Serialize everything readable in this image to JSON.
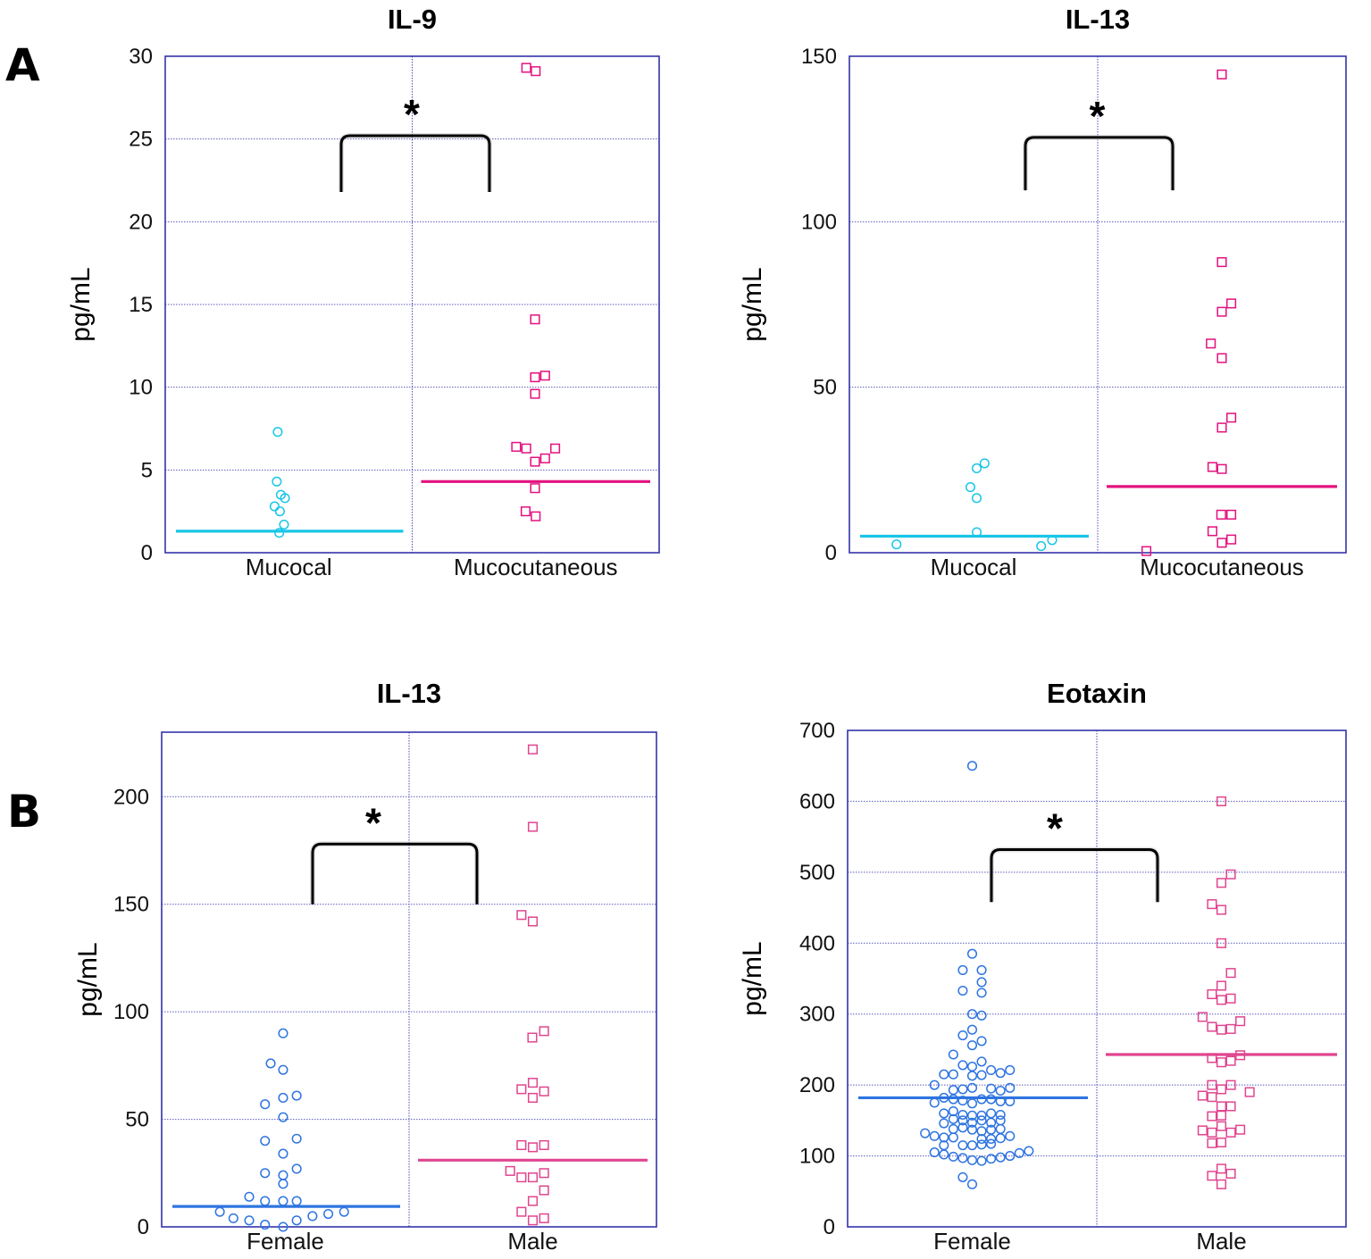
{
  "panel_labels": [
    "A",
    "B"
  ],
  "colors": {
    "frame": "#3333aa",
    "grid": "#4a4ab8",
    "cyan": "#19c6e6",
    "blue": "#2e74e0",
    "magenta_dark": "#e3117e",
    "magenta_light": "#e0458f",
    "bracket": "#000000"
  },
  "chart_data": [
    {
      "type": "scatter",
      "title": "IL-9",
      "ylabel": "pg/mL",
      "categories": [
        "Mucocal",
        "Mucocutaneous"
      ],
      "ylim": [
        0,
        30
      ],
      "yticks": [
        0,
        5,
        10,
        15,
        20,
        25,
        30
      ],
      "grid": true,
      "series": [
        {
          "name": "Mucocal",
          "marker": "circle",
          "color": "#19c6e6",
          "points": [
            [
              -0.35,
              7.3
            ],
            [
              -0.38,
              4.3
            ],
            [
              -0.25,
              3.5
            ],
            [
              -0.12,
              3.3
            ],
            [
              -0.45,
              2.8
            ],
            [
              -0.28,
              2.5
            ],
            [
              -0.15,
              1.7
            ],
            [
              -0.3,
              1.2
            ]
          ],
          "median": 1.3
        },
        {
          "name": "Mucocutaneous",
          "marker": "square",
          "color": "#e3117e",
          "points": [
            [
              -0.3,
              29.3
            ],
            [
              -0.0,
              29.1
            ],
            [
              -0.02,
              14.1
            ],
            [
              -0.02,
              10.6
            ],
            [
              0.3,
              10.7
            ],
            [
              -0.02,
              9.6
            ],
            [
              -0.62,
              6.4
            ],
            [
              -0.3,
              6.3
            ],
            [
              0.62,
              6.3
            ],
            [
              -0.02,
              5.5
            ],
            [
              0.3,
              5.7
            ],
            [
              -0.02,
              3.9
            ],
            [
              -0.32,
              2.5
            ],
            [
              0.0,
              2.2
            ]
          ],
          "median": 4.3
        }
      ],
      "significance": {
        "label": "*",
        "bracket_top": 25.2,
        "bracket_bottom": 21.8
      }
    },
    {
      "type": "scatter",
      "title": "IL-13",
      "ylabel": "pg/mL",
      "categories": [
        "Mucocal",
        "Mucocutaneous"
      ],
      "ylim": [
        0,
        150
      ],
      "yticks": [
        0,
        50,
        100,
        150
      ],
      "grid": true,
      "series": [
        {
          "name": "Mucocal",
          "marker": "circle",
          "color": "#19c6e6",
          "points": [
            [
              0.1,
              25.5
            ],
            [
              0.35,
              27
            ],
            [
              -0.1,
              19.8
            ],
            [
              0.1,
              16.5
            ],
            [
              0.1,
              6.2
            ],
            [
              -2.45,
              2.5
            ],
            [
              2.15,
              2.0
            ],
            [
              2.5,
              3.8
            ]
          ],
          "median": 5.0
        },
        {
          "name": "Mucocutaneous",
          "marker": "square",
          "color": "#e3117e",
          "points": [
            [
              0.0,
              144.5
            ],
            [
              0.0,
              87.8
            ],
            [
              0.0,
              72.8
            ],
            [
              0.3,
              75.3
            ],
            [
              -0.35,
              63.2
            ],
            [
              0.0,
              58.8
            ],
            [
              0.3,
              40.8
            ],
            [
              0.0,
              37.8
            ],
            [
              -0.3,
              25.9
            ],
            [
              0.0,
              25.3
            ],
            [
              -0.02,
              11.5
            ],
            [
              0.3,
              11.5
            ],
            [
              -0.3,
              6.5
            ],
            [
              0.0,
              3.0
            ],
            [
              0.3,
              4.0
            ],
            [
              -2.4,
              0.5
            ]
          ],
          "median": 20.0
        }
      ],
      "significance": {
        "label": "*",
        "bracket_top": 125.5,
        "bracket_bottom": 109.5
      }
    },
    {
      "type": "scatter",
      "title": "IL-13",
      "ylabel": "pg/mL",
      "categories": [
        "Female",
        "Male"
      ],
      "ylim": [
        0,
        230
      ],
      "yticks": [
        0,
        50,
        100,
        150,
        200
      ],
      "grid": true,
      "series": [
        {
          "name": "Female",
          "marker": "circle",
          "color": "#2e74e0",
          "points": [
            [
              -0.1,
              90
            ],
            [
              -0.65,
              76
            ],
            [
              -0.1,
              73
            ],
            [
              -0.9,
              57
            ],
            [
              -0.1,
              60
            ],
            [
              0.5,
              61
            ],
            [
              -0.1,
              51
            ],
            [
              -0.9,
              40
            ],
            [
              0.5,
              41
            ],
            [
              -0.1,
              34
            ],
            [
              -0.9,
              25
            ],
            [
              -0.1,
              24
            ],
            [
              0.5,
              27
            ],
            [
              -0.1,
              20
            ],
            [
              -1.6,
              14
            ],
            [
              -0.9,
              12
            ],
            [
              -0.1,
              12
            ],
            [
              0.5,
              12
            ],
            [
              -2.9,
              7
            ],
            [
              -2.3,
              4
            ],
            [
              -1.6,
              3
            ],
            [
              -0.9,
              1
            ],
            [
              -0.1,
              0
            ],
            [
              0.5,
              3
            ],
            [
              1.2,
              5
            ],
            [
              1.9,
              6
            ],
            [
              2.6,
              7
            ]
          ],
          "median": 9.5
        },
        {
          "name": "Male",
          "marker": "square",
          "color": "#e0458f",
          "points": [
            [
              0.0,
              222
            ],
            [
              0.0,
              186
            ],
            [
              -0.5,
              145
            ],
            [
              0.0,
              142
            ],
            [
              -0.02,
              88
            ],
            [
              0.5,
              91
            ],
            [
              -0.5,
              64
            ],
            [
              0.0,
              67
            ],
            [
              0.5,
              63
            ],
            [
              0.0,
              60
            ],
            [
              -0.5,
              38
            ],
            [
              0.0,
              37
            ],
            [
              0.5,
              38
            ],
            [
              -1.0,
              26
            ],
            [
              -0.5,
              23
            ],
            [
              0.0,
              23
            ],
            [
              0.5,
              25
            ],
            [
              0.0,
              12
            ],
            [
              0.5,
              17
            ],
            [
              -0.5,
              7
            ],
            [
              0.0,
              3
            ],
            [
              0.5,
              4
            ]
          ],
          "median": 31
        }
      ],
      "significance": {
        "label": "*",
        "bracket_top": 178,
        "bracket_bottom": 150
      }
    },
    {
      "type": "scatter",
      "title": "Eotaxin",
      "ylabel": "pg/mL",
      "categories": [
        "Female",
        "Male"
      ],
      "ylim": [
        0,
        700
      ],
      "yticks": [
        0,
        100,
        200,
        300,
        400,
        500,
        600,
        700
      ],
      "grid": true,
      "series": [
        {
          "name": "Female",
          "marker": "circle",
          "color": "#2e74e0",
          "points": [
            [
              0.0,
              650
            ],
            [
              0.0,
              385
            ],
            [
              -0.3,
              362
            ],
            [
              0.3,
              362
            ],
            [
              0.3,
              345
            ],
            [
              -0.3,
              333
            ],
            [
              0.3,
              330
            ],
            [
              0.0,
              300
            ],
            [
              0.3,
              298
            ],
            [
              0.0,
              278
            ],
            [
              -0.3,
              270
            ],
            [
              0.3,
              262
            ],
            [
              0.0,
              256
            ],
            [
              -0.6,
              243
            ],
            [
              0.3,
              233
            ],
            [
              -0.3,
              228
            ],
            [
              0.0,
              226
            ],
            [
              0.6,
              221
            ],
            [
              -0.9,
              215
            ],
            [
              -0.6,
              215
            ],
            [
              0.0,
              213
            ],
            [
              0.3,
              214
            ],
            [
              0.9,
              217
            ],
            [
              1.2,
              221
            ],
            [
              -1.2,
              200
            ],
            [
              -0.6,
              193
            ],
            [
              -0.3,
              194
            ],
            [
              0.0,
              196
            ],
            [
              0.6,
              195
            ],
            [
              0.9,
              192
            ],
            [
              1.2,
              196
            ],
            [
              -1.2,
              175
            ],
            [
              -0.9,
              182
            ],
            [
              -0.6,
              180
            ],
            [
              -0.3,
              178
            ],
            [
              0.0,
              174
            ],
            [
              0.3,
              180
            ],
            [
              0.6,
              180
            ],
            [
              0.9,
              177
            ],
            [
              1.2,
              177
            ],
            [
              -0.9,
              160
            ],
            [
              -0.6,
              163
            ],
            [
              -0.3,
              158
            ],
            [
              0.0,
              157
            ],
            [
              0.3,
              157
            ],
            [
              0.6,
              160
            ],
            [
              0.9,
              158
            ],
            [
              -0.9,
              146
            ],
            [
              -0.6,
              152
            ],
            [
              -0.3,
              150
            ],
            [
              0.0,
              147
            ],
            [
              0.3,
              150
            ],
            [
              0.6,
              147
            ],
            [
              0.9,
              150
            ],
            [
              -0.6,
              138
            ],
            [
              -0.3,
              140
            ],
            [
              0.0,
              137
            ],
            [
              0.3,
              135
            ],
            [
              0.6,
              137
            ],
            [
              0.9,
              138
            ],
            [
              -1.5,
              132
            ],
            [
              -1.2,
              128
            ],
            [
              -0.9,
              126
            ],
            [
              -0.6,
              126
            ],
            [
              0.3,
              124
            ],
            [
              0.6,
              124
            ],
            [
              0.9,
              125
            ],
            [
              1.2,
              128
            ],
            [
              -0.9,
              115
            ],
            [
              -0.3,
              115
            ],
            [
              0.0,
              115
            ],
            [
              0.3,
              116
            ],
            [
              0.6,
              117
            ],
            [
              -1.2,
              105
            ],
            [
              -0.9,
              102
            ],
            [
              -0.6,
              99
            ],
            [
              -0.3,
              97
            ],
            [
              0.0,
              94
            ],
            [
              0.3,
              93
            ],
            [
              0.6,
              96
            ],
            [
              0.9,
              98
            ],
            [
              1.2,
              100
            ],
            [
              1.5,
              104
            ],
            [
              1.8,
              107
            ],
            [
              -0.3,
              70
            ],
            [
              0.0,
              60
            ]
          ],
          "median": 182
        },
        {
          "name": "Male",
          "marker": "square",
          "color": "#e0458f",
          "points": [
            [
              0.0,
              600
            ],
            [
              0.3,
              497
            ],
            [
              0.0,
              485
            ],
            [
              -0.3,
              455
            ],
            [
              0.0,
              447
            ],
            [
              0.0,
              400
            ],
            [
              0.3,
              358
            ],
            [
              0.0,
              340
            ],
            [
              -0.3,
              328
            ],
            [
              0.3,
              322
            ],
            [
              0.0,
              320
            ],
            [
              -0.6,
              296
            ],
            [
              0.6,
              290
            ],
            [
              -0.3,
              282
            ],
            [
              0.0,
              278
            ],
            [
              0.3,
              279
            ],
            [
              0.6,
              242
            ],
            [
              -0.3,
              238
            ],
            [
              0.0,
              232
            ],
            [
              0.3,
              234
            ],
            [
              -0.3,
              200
            ],
            [
              0.3,
              200
            ],
            [
              0.0,
              194
            ],
            [
              0.9,
              190
            ],
            [
              -0.6,
              185
            ],
            [
              -0.3,
              183
            ],
            [
              0.0,
              170
            ],
            [
              0.3,
              170
            ],
            [
              -0.3,
              156
            ],
            [
              0.0,
              157
            ],
            [
              -0.3,
              133
            ],
            [
              0.0,
              142
            ],
            [
              0.3,
              133
            ],
            [
              -0.6,
              136
            ],
            [
              0.6,
              137
            ],
            [
              -0.3,
              118
            ],
            [
              0.0,
              119
            ],
            [
              0.0,
              82
            ],
            [
              -0.3,
              72
            ],
            [
              0.3,
              75
            ],
            [
              0.0,
              60
            ]
          ],
          "median": 243
        }
      ],
      "significance": {
        "label": "*",
        "bracket_top": 532,
        "bracket_bottom": 458
      }
    }
  ]
}
